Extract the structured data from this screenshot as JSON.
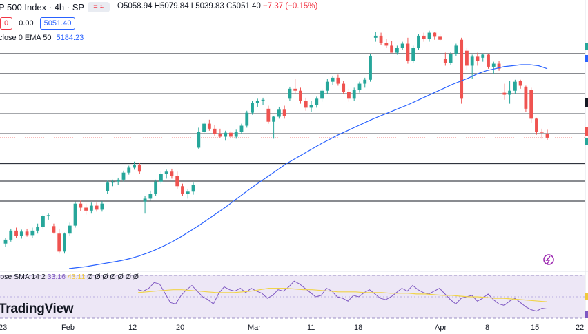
{
  "header": {
    "title": "P 500 Index · 4h · SP",
    "toggle": "= ≈",
    "ohlc_open": "O5058.94",
    "ohlc_high": "H5079.84",
    "ohlc_low": "L5039.83",
    "ohlc_close": "C5051.40",
    "ohlc_change": "−7.37 (−0.15%)",
    "spread_left": "0",
    "spread": "0.00",
    "price_box": "5051.40"
  },
  "ema_legend": {
    "label": "close 0 EMA 50",
    "value": "5184.23"
  },
  "rsi_legend": {
    "label": "lose SMA 14 2",
    "value1": "33.16",
    "value2": "43.11",
    "extra": "Ø Ø Ø Ø Ø Ø Ø"
  },
  "brand": "TradingView",
  "x_axis_labels": [
    "23",
    "Feb",
    "12",
    "20",
    "Mar",
    "11",
    "18",
    "Apr",
    "8",
    "15",
    "22"
  ],
  "colors": {
    "up": "#26a69a",
    "down": "#ef5350",
    "ema": "#2962ff",
    "rsi": "#7e57c2",
    "rsi_sma": "#f0d44a",
    "rsi_band": "#ede7f6"
  },
  "icons": [
    "flash-icon"
  ],
  "chart_data": [
    {
      "type": "candlestick",
      "title": "P 500 Index · 4h · SP",
      "ylim": [
        4790,
        5300
      ],
      "horizontal_levels": [
        5220,
        5180,
        5140,
        5100,
        5060,
        5000,
        4965,
        4925
      ],
      "candles": [
        {
          "o": 4840,
          "h": 4852,
          "l": 4834,
          "c": 4848
        },
        {
          "o": 4848,
          "h": 4870,
          "l": 4844,
          "c": 4866
        },
        {
          "o": 4866,
          "h": 4872,
          "l": 4852,
          "c": 4855
        },
        {
          "o": 4855,
          "h": 4868,
          "l": 4850,
          "c": 4864
        },
        {
          "o": 4864,
          "h": 4870,
          "l": 4854,
          "c": 4857
        },
        {
          "o": 4857,
          "h": 4872,
          "l": 4852,
          "c": 4866
        },
        {
          "o": 4866,
          "h": 4880,
          "l": 4860,
          "c": 4874
        },
        {
          "o": 4874,
          "h": 4898,
          "l": 4870,
          "c": 4895
        },
        {
          "o": 4895,
          "h": 4900,
          "l": 4888,
          "c": 4897
        },
        {
          "o": 4875,
          "h": 4880,
          "l": 4860,
          "c": 4862
        },
        {
          "o": 4860,
          "h": 4870,
          "l": 4820,
          "c": 4824
        },
        {
          "o": 4824,
          "h": 4862,
          "l": 4820,
          "c": 4860
        },
        {
          "o": 4860,
          "h": 4882,
          "l": 4856,
          "c": 4876
        },
        {
          "o": 4876,
          "h": 4924,
          "l": 4872,
          "c": 4920
        },
        {
          "o": 4920,
          "h": 4926,
          "l": 4905,
          "c": 4912
        },
        {
          "o": 4912,
          "h": 4920,
          "l": 4898,
          "c": 4906
        },
        {
          "o": 4906,
          "h": 4922,
          "l": 4900,
          "c": 4916
        },
        {
          "o": 4916,
          "h": 4922,
          "l": 4904,
          "c": 4908
        },
        {
          "o": 4908,
          "h": 4925,
          "l": 4904,
          "c": 4920
        },
        {
          "o": 4945,
          "h": 4966,
          "l": 4940,
          "c": 4962
        },
        {
          "o": 4962,
          "h": 4968,
          "l": 4955,
          "c": 4964
        },
        {
          "o": 4964,
          "h": 4972,
          "l": 4958,
          "c": 4968
        },
        {
          "o": 4968,
          "h": 4986,
          "l": 4964,
          "c": 4982
        },
        {
          "o": 4982,
          "h": 4996,
          "l": 4978,
          "c": 4992
        },
        {
          "o": 4992,
          "h": 5004,
          "l": 4988,
          "c": 4998
        },
        {
          "o": 4998,
          "h": 5002,
          "l": 4980,
          "c": 4984
        },
        {
          "o": 4924,
          "h": 4936,
          "l": 4900,
          "c": 4930
        },
        {
          "o": 4930,
          "h": 4946,
          "l": 4926,
          "c": 4940
        },
        {
          "o": 4940,
          "h": 4968,
          "l": 4936,
          "c": 4964
        },
        {
          "o": 4964,
          "h": 4984,
          "l": 4960,
          "c": 4980
        },
        {
          "o": 4980,
          "h": 4988,
          "l": 4970,
          "c": 4984
        },
        {
          "o": 4984,
          "h": 4990,
          "l": 4970,
          "c": 4975
        },
        {
          "o": 4975,
          "h": 4984,
          "l": 4950,
          "c": 4955
        },
        {
          "o": 4955,
          "h": 4960,
          "l": 4936,
          "c": 4940
        },
        {
          "o": 4940,
          "h": 4950,
          "l": 4930,
          "c": 4944
        },
        {
          "o": 4944,
          "h": 4962,
          "l": 4938,
          "c": 4958
        },
        {
          "o": 5032,
          "h": 5072,
          "l": 5030,
          "c": 5064
        },
        {
          "o": 5064,
          "h": 5084,
          "l": 5060,
          "c": 5080
        },
        {
          "o": 5080,
          "h": 5088,
          "l": 5066,
          "c": 5070
        },
        {
          "o": 5070,
          "h": 5078,
          "l": 5055,
          "c": 5060
        },
        {
          "o": 5060,
          "h": 5070,
          "l": 5052,
          "c": 5054
        },
        {
          "o": 5054,
          "h": 5066,
          "l": 5046,
          "c": 5062
        },
        {
          "o": 5062,
          "h": 5066,
          "l": 5050,
          "c": 5054
        },
        {
          "o": 5054,
          "h": 5068,
          "l": 5050,
          "c": 5064
        },
        {
          "o": 5064,
          "h": 5080,
          "l": 5060,
          "c": 5076
        },
        {
          "o": 5076,
          "h": 5106,
          "l": 5072,
          "c": 5102
        },
        {
          "o": 5102,
          "h": 5126,
          "l": 5098,
          "c": 5122
        },
        {
          "o": 5122,
          "h": 5130,
          "l": 5114,
          "c": 5126
        },
        {
          "o": 5126,
          "h": 5132,
          "l": 5118,
          "c": 5128
        },
        {
          "o": 5110,
          "h": 5116,
          "l": 5080,
          "c": 5084
        },
        {
          "o": 5084,
          "h": 5096,
          "l": 5050,
          "c": 5094
        },
        {
          "o": 5094,
          "h": 5114,
          "l": 5090,
          "c": 5108
        },
        {
          "o": 5108,
          "h": 5116,
          "l": 5090,
          "c": 5096
        },
        {
          "o": 5130,
          "h": 5154,
          "l": 5126,
          "c": 5150
        },
        {
          "o": 5150,
          "h": 5170,
          "l": 5140,
          "c": 5146
        },
        {
          "o": 5146,
          "h": 5152,
          "l": 5120,
          "c": 5126
        },
        {
          "o": 5126,
          "h": 5132,
          "l": 5106,
          "c": 5112
        },
        {
          "o": 5112,
          "h": 5126,
          "l": 5104,
          "c": 5118
        },
        {
          "o": 5118,
          "h": 5134,
          "l": 5112,
          "c": 5130
        },
        {
          "o": 5130,
          "h": 5150,
          "l": 5124,
          "c": 5146
        },
        {
          "o": 5146,
          "h": 5170,
          "l": 5140,
          "c": 5164
        },
        {
          "o": 5164,
          "h": 5176,
          "l": 5158,
          "c": 5172
        },
        {
          "o": 5172,
          "h": 5178,
          "l": 5156,
          "c": 5160
        },
        {
          "o": 5160,
          "h": 5166,
          "l": 5140,
          "c": 5144
        },
        {
          "o": 5144,
          "h": 5150,
          "l": 5124,
          "c": 5130
        },
        {
          "o": 5130,
          "h": 5152,
          "l": 5126,
          "c": 5148
        },
        {
          "o": 5148,
          "h": 5164,
          "l": 5142,
          "c": 5160
        },
        {
          "o": 5160,
          "h": 5172,
          "l": 5152,
          "c": 5168
        },
        {
          "o": 5168,
          "h": 5220,
          "l": 5164,
          "c": 5216
        },
        {
          "o": 5252,
          "h": 5264,
          "l": 5244,
          "c": 5256
        },
        {
          "o": 5256,
          "h": 5262,
          "l": 5238,
          "c": 5242
        },
        {
          "o": 5242,
          "h": 5250,
          "l": 5232,
          "c": 5236
        },
        {
          "o": 5236,
          "h": 5246,
          "l": 5226,
          "c": 5222
        },
        {
          "o": 5222,
          "h": 5236,
          "l": 5218,
          "c": 5232
        },
        {
          "o": 5232,
          "h": 5244,
          "l": 5228,
          "c": 5240
        },
        {
          "o": 5240,
          "h": 5252,
          "l": 5200,
          "c": 5206
        },
        {
          "o": 5206,
          "h": 5236,
          "l": 5202,
          "c": 5232
        },
        {
          "o": 5232,
          "h": 5260,
          "l": 5228,
          "c": 5256
        },
        {
          "o": 5256,
          "h": 5262,
          "l": 5244,
          "c": 5250
        },
        {
          "o": 5250,
          "h": 5266,
          "l": 5244,
          "c": 5262
        },
        {
          "o": 5262,
          "h": 5264,
          "l": 5248,
          "c": 5254
        },
        {
          "o": 5254,
          "h": 5260,
          "l": 5246,
          "c": 5248
        },
        {
          "o": 5210,
          "h": 5222,
          "l": 5196,
          "c": 5202
        },
        {
          "o": 5202,
          "h": 5224,
          "l": 5198,
          "c": 5220
        },
        {
          "o": 5220,
          "h": 5240,
          "l": 5216,
          "c": 5236
        },
        {
          "o": 5248,
          "h": 5252,
          "l": 5120,
          "c": 5130
        },
        {
          "o": 5226,
          "h": 5232,
          "l": 5188,
          "c": 5196
        },
        {
          "o": 5196,
          "h": 5218,
          "l": 5170,
          "c": 5214
        },
        {
          "o": 5214,
          "h": 5222,
          "l": 5196,
          "c": 5206
        },
        {
          "o": 5212,
          "h": 5220,
          "l": 5204,
          "c": 5218
        },
        {
          "o": 5218,
          "h": 5220,
          "l": 5190,
          "c": 5194
        },
        {
          "o": 5194,
          "h": 5204,
          "l": 5180,
          "c": 5200
        },
        {
          "o": 5200,
          "h": 5206,
          "l": 5186,
          "c": 5190
        },
        {
          "o": 5142,
          "h": 5160,
          "l": 5128,
          "c": 5138
        },
        {
          "o": 5138,
          "h": 5166,
          "l": 5120,
          "c": 5146
        },
        {
          "o": 5146,
          "h": 5168,
          "l": 5140,
          "c": 5164
        },
        {
          "o": 5166,
          "h": 5168,
          "l": 5150,
          "c": 5156
        },
        {
          "o": 5154,
          "h": 5156,
          "l": 5104,
          "c": 5110
        },
        {
          "o": 5148,
          "h": 5152,
          "l": 5082,
          "c": 5090
        },
        {
          "o": 5090,
          "h": 5092,
          "l": 5058,
          "c": 5064
        },
        {
          "o": 5064,
          "h": 5070,
          "l": 5050,
          "c": 5062
        },
        {
          "o": 5060,
          "h": 5068,
          "l": 5048,
          "c": 5052
        }
      ],
      "series": [
        {
          "name": "EMA 50",
          "values": [
            4790,
            4792,
            4794,
            4797,
            4800,
            4803,
            4806,
            4810,
            4815,
            4821,
            4828,
            4836,
            4845,
            4855,
            4866,
            4877,
            4889,
            4901,
            4913,
            4926,
            4939,
            4952,
            4964,
            4976,
            4988,
            5000,
            5010,
            5020,
            5030,
            5040,
            5049,
            5058,
            5066,
            5074,
            5082,
            5090,
            5097,
            5104,
            5111,
            5118,
            5126,
            5134,
            5142,
            5150,
            5158,
            5165,
            5172,
            5180,
            5186,
            5190,
            5194,
            5196,
            5198,
            5198,
            5196,
            5190
          ]
        }
      ]
    },
    {
      "type": "line",
      "title": "RSI",
      "ylim": [
        0,
        100
      ],
      "series": [
        {
          "name": "RSI",
          "values": [
            60,
            58,
            62,
            70,
            68,
            55,
            42,
            40,
            52,
            60,
            66,
            58,
            50,
            46,
            40,
            55,
            64,
            60,
            58,
            62,
            56,
            62,
            58,
            55,
            48,
            52,
            60,
            58,
            64,
            72,
            68,
            62,
            56,
            50,
            52,
            62,
            58,
            50,
            48,
            44,
            52,
            50,
            56,
            60,
            54,
            48,
            46,
            50,
            56,
            62,
            58,
            66,
            60,
            56,
            54,
            58,
            62,
            54,
            46,
            40,
            48,
            50,
            52,
            44,
            48,
            54,
            46,
            40,
            38,
            44,
            48,
            42,
            36,
            32,
            30,
            34,
            33
          ]
        },
        {
          "name": "SMA 14",
          "values": [
            56,
            57,
            58,
            59,
            60,
            60,
            59,
            58,
            57,
            56,
            56,
            56,
            57,
            58,
            60,
            62,
            62,
            62,
            61,
            60,
            60,
            59,
            58,
            57,
            57,
            57,
            56,
            56,
            56,
            55,
            55,
            55,
            54,
            54,
            53,
            52,
            52,
            51,
            50,
            50,
            49,
            48,
            48,
            47,
            46,
            45,
            44,
            43
          ]
        }
      ]
    }
  ]
}
